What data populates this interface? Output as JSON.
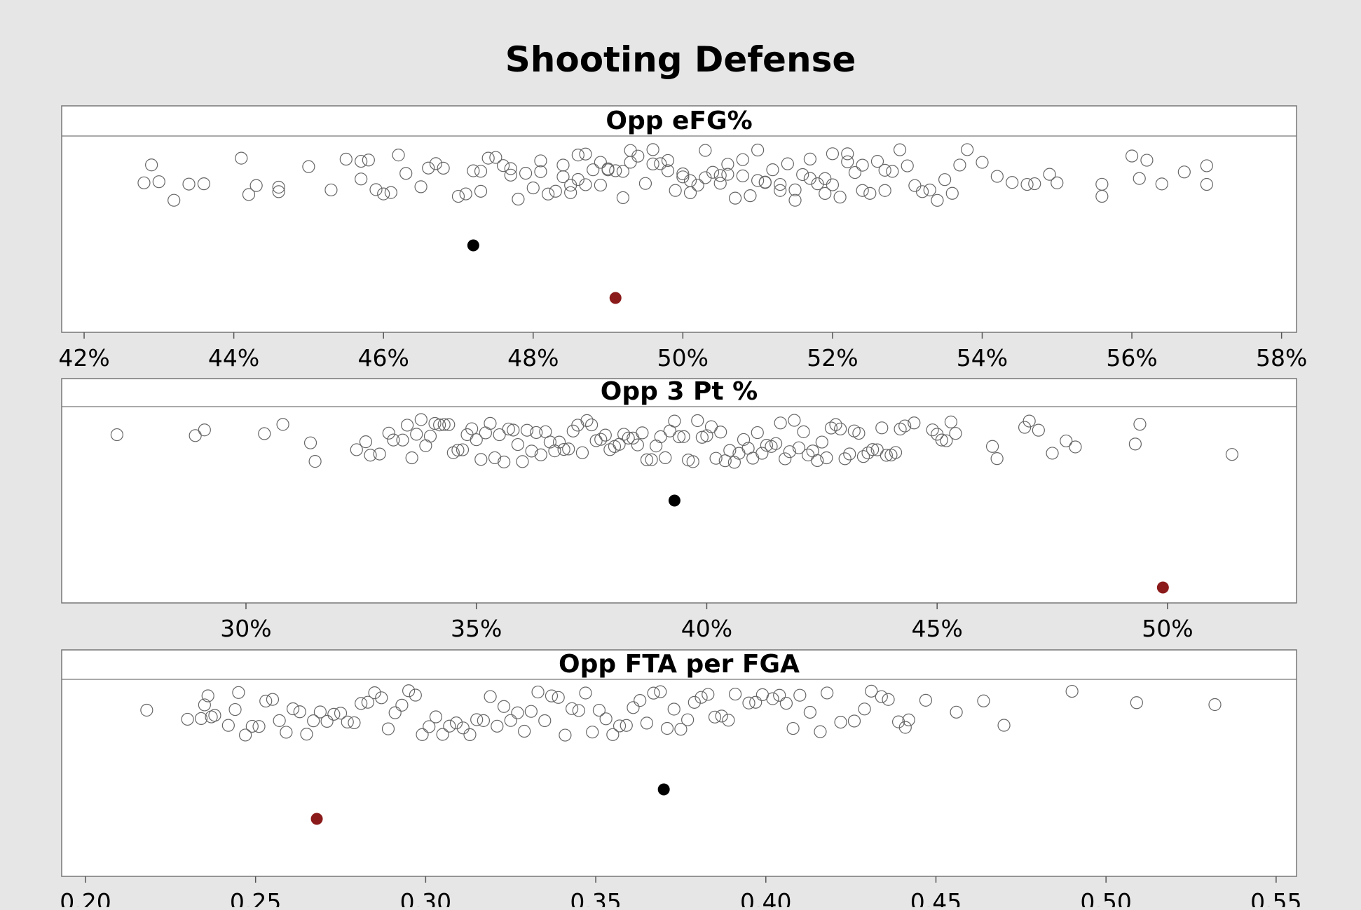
{
  "chart_data": {
    "type": "scatter",
    "title": "Shooting Defense",
    "colors": {
      "background": "#e6e6e6",
      "panel": "#ffffff",
      "open_point": "#666666",
      "highlight_black": "#000000",
      "highlight_red": "#8b1a1a"
    },
    "panels": [
      {
        "strip_label": "Opp eFG%",
        "xlim": [
          41.7,
          58.2
        ],
        "ticks": [
          {
            "value": 42,
            "label": "42%"
          },
          {
            "value": 44,
            "label": "44%"
          },
          {
            "value": 46,
            "label": "46%"
          },
          {
            "value": 48,
            "label": "48%"
          },
          {
            "value": 50,
            "label": "50%"
          },
          {
            "value": 52,
            "label": "52%"
          },
          {
            "value": 54,
            "label": "54%"
          },
          {
            "value": 56,
            "label": "56%"
          },
          {
            "value": 58,
            "label": "58%"
          }
        ],
        "open_points": [
          42.8,
          42.9,
          43.0,
          43.2,
          43.4,
          43.6,
          44.1,
          44.2,
          44.3,
          44.6,
          44.6,
          45.0,
          45.3,
          45.5,
          45.7,
          45.7,
          45.8,
          45.9,
          46.0,
          46.1,
          46.2,
          46.3,
          46.5,
          46.6,
          46.7,
          46.8,
          47.0,
          47.1,
          47.2,
          47.3,
          47.3,
          47.4,
          47.5,
          47.6,
          47.7,
          47.7,
          47.8,
          47.9,
          48.0,
          48.1,
          48.1,
          48.2,
          48.3,
          48.4,
          48.4,
          48.5,
          48.5,
          48.6,
          48.6,
          48.7,
          48.7,
          48.8,
          48.9,
          48.9,
          49.0,
          49.0,
          49.1,
          49.2,
          49.2,
          49.3,
          49.3,
          49.4,
          49.5,
          49.6,
          49.6,
          49.7,
          49.8,
          49.8,
          49.9,
          50.0,
          50.0,
          50.1,
          50.1,
          50.2,
          50.3,
          50.3,
          50.4,
          50.5,
          50.5,
          50.6,
          50.6,
          50.7,
          50.8,
          50.8,
          50.9,
          51.0,
          51.0,
          51.1,
          51.1,
          51.2,
          51.3,
          51.3,
          51.4,
          51.5,
          51.5,
          51.6,
          51.7,
          51.7,
          51.8,
          51.9,
          51.9,
          52.0,
          52.0,
          52.1,
          52.2,
          52.2,
          52.3,
          52.4,
          52.4,
          52.5,
          52.6,
          52.7,
          52.7,
          52.8,
          52.9,
          53.0,
          53.1,
          53.2,
          53.3,
          53.4,
          53.5,
          53.6,
          53.7,
          53.8,
          54.0,
          54.2,
          54.4,
          54.6,
          54.7,
          54.9,
          55.0,
          55.6,
          55.6,
          56.0,
          56.1,
          56.2,
          56.4,
          56.7,
          57.0,
          57.0
        ],
        "highlight_points": [
          {
            "value": 47.2,
            "color": "black"
          },
          {
            "value": 49.1,
            "color": "red"
          }
        ]
      },
      {
        "strip_label": "Opp 3 Pt %",
        "xlim": [
          26.0,
          52.8
        ],
        "ticks": [
          {
            "value": 30,
            "label": "30%"
          },
          {
            "value": 35,
            "label": "35%"
          },
          {
            "value": 40,
            "label": "40%"
          },
          {
            "value": 45,
            "label": "45%"
          },
          {
            "value": 50,
            "label": "50%"
          }
        ],
        "open_points": [
          27.2,
          28.9,
          29.1,
          30.4,
          30.8,
          31.4,
          31.5,
          32.4,
          32.6,
          32.7,
          32.9,
          33.1,
          33.2,
          33.4,
          33.5,
          33.6,
          33.7,
          33.8,
          33.9,
          34.0,
          34.1,
          34.2,
          34.3,
          34.4,
          34.5,
          34.6,
          34.7,
          34.8,
          34.9,
          35.0,
          35.1,
          35.2,
          35.3,
          35.4,
          35.5,
          35.6,
          35.7,
          35.8,
          35.9,
          36.0,
          36.1,
          36.2,
          36.3,
          36.4,
          36.5,
          36.6,
          36.7,
          36.8,
          36.9,
          37.0,
          37.1,
          37.2,
          37.3,
          37.4,
          37.5,
          37.6,
          37.7,
          37.8,
          37.9,
          38.0,
          38.1,
          38.2,
          38.3,
          38.4,
          38.5,
          38.6,
          38.7,
          38.8,
          38.9,
          39.0,
          39.1,
          39.2,
          39.3,
          39.4,
          39.5,
          39.6,
          39.7,
          39.8,
          39.9,
          40.0,
          40.1,
          40.2,
          40.3,
          40.4,
          40.5,
          40.6,
          40.7,
          40.8,
          40.9,
          41.0,
          41.1,
          41.2,
          41.3,
          41.4,
          41.5,
          41.6,
          41.7,
          41.8,
          41.9,
          42.0,
          42.1,
          42.2,
          42.3,
          42.4,
          42.5,
          42.6,
          42.7,
          42.8,
          42.9,
          43.0,
          43.1,
          43.2,
          43.3,
          43.4,
          43.5,
          43.6,
          43.7,
          43.8,
          43.9,
          44.0,
          44.1,
          44.2,
          44.3,
          44.5,
          44.9,
          45.0,
          45.1,
          45.2,
          45.3,
          45.4,
          46.2,
          46.3,
          46.9,
          47.0,
          47.2,
          47.5,
          47.8,
          48.0,
          49.3,
          49.4,
          51.4
        ],
        "highlight_points": [
          {
            "value": 39.3,
            "color": "black"
          },
          {
            "value": 49.9,
            "color": "red"
          }
        ]
      },
      {
        "strip_label": "Opp FTA per FGA",
        "xlim": [
          0.193,
          0.556
        ],
        "ticks": [
          {
            "value": 0.2,
            "label": "0.20"
          },
          {
            "value": 0.25,
            "label": "0.25"
          },
          {
            "value": 0.3,
            "label": "0.30"
          },
          {
            "value": 0.35,
            "label": "0.35"
          },
          {
            "value": 0.4,
            "label": "0.40"
          },
          {
            "value": 0.45,
            "label": "0.45"
          },
          {
            "value": 0.5,
            "label": "0.50"
          },
          {
            "value": 0.55,
            "label": "0.55"
          }
        ],
        "open_points": [
          0.218,
          0.23,
          0.234,
          0.235,
          0.236,
          0.237,
          0.238,
          0.242,
          0.244,
          0.245,
          0.247,
          0.249,
          0.251,
          0.253,
          0.255,
          0.257,
          0.259,
          0.261,
          0.263,
          0.265,
          0.267,
          0.269,
          0.271,
          0.273,
          0.275,
          0.277,
          0.279,
          0.281,
          0.283,
          0.285,
          0.287,
          0.289,
          0.291,
          0.293,
          0.295,
          0.297,
          0.299,
          0.301,
          0.303,
          0.305,
          0.307,
          0.309,
          0.311,
          0.313,
          0.315,
          0.317,
          0.319,
          0.321,
          0.323,
          0.325,
          0.327,
          0.329,
          0.331,
          0.333,
          0.335,
          0.337,
          0.339,
          0.341,
          0.343,
          0.345,
          0.347,
          0.349,
          0.351,
          0.353,
          0.355,
          0.357,
          0.359,
          0.361,
          0.363,
          0.365,
          0.367,
          0.369,
          0.371,
          0.373,
          0.375,
          0.377,
          0.379,
          0.381,
          0.383,
          0.385,
          0.387,
          0.389,
          0.391,
          0.395,
          0.397,
          0.399,
          0.402,
          0.404,
          0.406,
          0.408,
          0.41,
          0.413,
          0.416,
          0.418,
          0.422,
          0.426,
          0.429,
          0.431,
          0.434,
          0.436,
          0.439,
          0.441,
          0.442,
          0.447,
          0.456,
          0.464,
          0.47,
          0.49,
          0.509,
          0.532
        ],
        "highlight_points": [
          {
            "value": 0.37,
            "color": "black"
          },
          {
            "value": 0.268,
            "color": "red"
          }
        ]
      }
    ]
  }
}
